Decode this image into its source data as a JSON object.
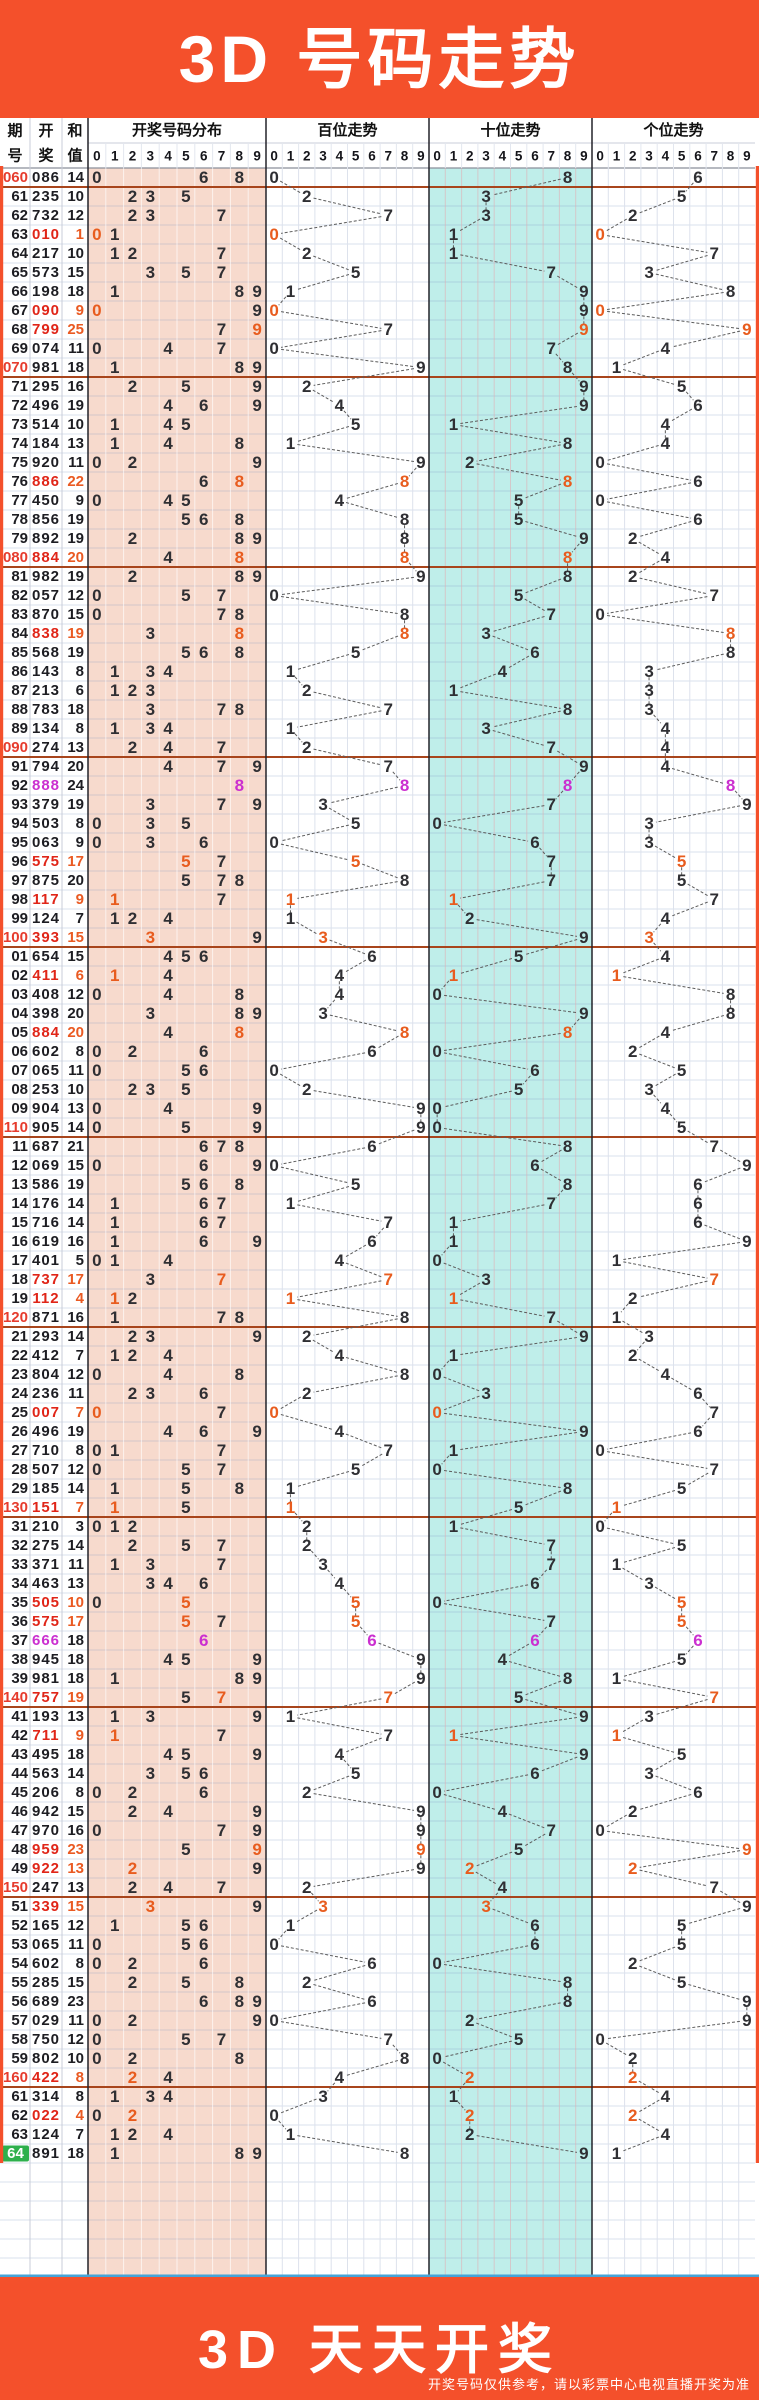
{
  "title": "3D 号码走势",
  "footer": {
    "title": "3D 天天开奖",
    "disclaimer": "开奖号码仅供参考，请以彩票中心电视直播开奖为准"
  },
  "table_header": {
    "period": [
      "期",
      "号"
    ],
    "draw": [
      "开",
      "奖"
    ],
    "sum": [
      "和",
      "值"
    ],
    "groups": [
      "开奖号码分布",
      "百位走势",
      "十位走势",
      "个位走势"
    ],
    "digits": [
      "0",
      "1",
      "2",
      "3",
      "4",
      "5",
      "6",
      "7",
      "8",
      "9"
    ]
  },
  "colors": {
    "banner": "#f4502b",
    "pink_bg": "#f7dacd",
    "cyan_bg": "#bfeeea",
    "ink": "#2f2f33",
    "ink2": "#1d1d22",
    "pair": "#e85c1e",
    "triple": "#cb2fd0",
    "period_red": "#e63c2e",
    "draw_red": "#e02518",
    "sum_red": "#ea5a22",
    "green": "#2eb04c",
    "separator": "#a8451c",
    "blue_line": "#46a4d8"
  },
  "chart_data": {
    "type": "table",
    "description": "China Welfare 3D lottery trend chart. Each row: period, winning 3-digit number, digit sum. Digits are plotted on 0-9 axes for number distribution, hundreds, tens and units positions; repeated-digit draws shown orange, triple-digit draws shown magenta.",
    "digit_axis": [
      "0",
      "1",
      "2",
      "3",
      "4",
      "5",
      "6",
      "7",
      "8",
      "9"
    ],
    "rows": [
      {
        "p": "060",
        "d": "086",
        "s": 14
      },
      {
        "p": "61",
        "d": "235",
        "s": 10
      },
      {
        "p": "62",
        "d": "732",
        "s": 12
      },
      {
        "p": "63",
        "d": "010",
        "s": 1
      },
      {
        "p": "64",
        "d": "217",
        "s": 10
      },
      {
        "p": "65",
        "d": "573",
        "s": 15
      },
      {
        "p": "66",
        "d": "198",
        "s": 18
      },
      {
        "p": "67",
        "d": "090",
        "s": 9
      },
      {
        "p": "68",
        "d": "799",
        "s": 25
      },
      {
        "p": "69",
        "d": "074",
        "s": 11
      },
      {
        "p": "070",
        "d": "981",
        "s": 18
      },
      {
        "p": "71",
        "d": "295",
        "s": 16
      },
      {
        "p": "72",
        "d": "496",
        "s": 19
      },
      {
        "p": "73",
        "d": "514",
        "s": 10
      },
      {
        "p": "74",
        "d": "184",
        "s": 13
      },
      {
        "p": "75",
        "d": "920",
        "s": 11
      },
      {
        "p": "76",
        "d": "886",
        "s": 22
      },
      {
        "p": "77",
        "d": "450",
        "s": 9
      },
      {
        "p": "78",
        "d": "856",
        "s": 19
      },
      {
        "p": "79",
        "d": "892",
        "s": 19
      },
      {
        "p": "080",
        "d": "884",
        "s": 20
      },
      {
        "p": "81",
        "d": "982",
        "s": 19
      },
      {
        "p": "82",
        "d": "057",
        "s": 12
      },
      {
        "p": "83",
        "d": "870",
        "s": 15
      },
      {
        "p": "84",
        "d": "838",
        "s": 19
      },
      {
        "p": "85",
        "d": "568",
        "s": 19
      },
      {
        "p": "86",
        "d": "143",
        "s": 8
      },
      {
        "p": "87",
        "d": "213",
        "s": 6
      },
      {
        "p": "88",
        "d": "783",
        "s": 18
      },
      {
        "p": "89",
        "d": "134",
        "s": 8
      },
      {
        "p": "090",
        "d": "274",
        "s": 13
      },
      {
        "p": "91",
        "d": "794",
        "s": 20
      },
      {
        "p": "92",
        "d": "888",
        "s": 24
      },
      {
        "p": "93",
        "d": "379",
        "s": 19
      },
      {
        "p": "94",
        "d": "503",
        "s": 8
      },
      {
        "p": "95",
        "d": "063",
        "s": 9
      },
      {
        "p": "96",
        "d": "575",
        "s": 17
      },
      {
        "p": "97",
        "d": "875",
        "s": 20
      },
      {
        "p": "98",
        "d": "117",
        "s": 9
      },
      {
        "p": "99",
        "d": "124",
        "s": 7
      },
      {
        "p": "100",
        "d": "393",
        "s": 15
      },
      {
        "p": "01",
        "d": "654",
        "s": 15
      },
      {
        "p": "02",
        "d": "411",
        "s": 6
      },
      {
        "p": "03",
        "d": "408",
        "s": 12
      },
      {
        "p": "04",
        "d": "398",
        "s": 20
      },
      {
        "p": "05",
        "d": "884",
        "s": 20
      },
      {
        "p": "06",
        "d": "602",
        "s": 8
      },
      {
        "p": "07",
        "d": "065",
        "s": 11
      },
      {
        "p": "08",
        "d": "253",
        "s": 10
      },
      {
        "p": "09",
        "d": "904",
        "s": 13
      },
      {
        "p": "110",
        "d": "905",
        "s": 14
      },
      {
        "p": "11",
        "d": "687",
        "s": 21
      },
      {
        "p": "12",
        "d": "069",
        "s": 15
      },
      {
        "p": "13",
        "d": "586",
        "s": 19
      },
      {
        "p": "14",
        "d": "176",
        "s": 14
      },
      {
        "p": "15",
        "d": "716",
        "s": 14
      },
      {
        "p": "16",
        "d": "619",
        "s": 16
      },
      {
        "p": "17",
        "d": "401",
        "s": 5
      },
      {
        "p": "18",
        "d": "737",
        "s": 17
      },
      {
        "p": "19",
        "d": "112",
        "s": 4
      },
      {
        "p": "120",
        "d": "871",
        "s": 16
      },
      {
        "p": "21",
        "d": "293",
        "s": 14
      },
      {
        "p": "22",
        "d": "412",
        "s": 7
      },
      {
        "p": "23",
        "d": "804",
        "s": 12
      },
      {
        "p": "24",
        "d": "236",
        "s": 11
      },
      {
        "p": "25",
        "d": "007",
        "s": 7
      },
      {
        "p": "26",
        "d": "496",
        "s": 19
      },
      {
        "p": "27",
        "d": "710",
        "s": 8
      },
      {
        "p": "28",
        "d": "507",
        "s": 12
      },
      {
        "p": "29",
        "d": "185",
        "s": 14
      },
      {
        "p": "130",
        "d": "151",
        "s": 7
      },
      {
        "p": "31",
        "d": "210",
        "s": 3
      },
      {
        "p": "32",
        "d": "275",
        "s": 14
      },
      {
        "p": "33",
        "d": "371",
        "s": 11
      },
      {
        "p": "34",
        "d": "463",
        "s": 13
      },
      {
        "p": "35",
        "d": "505",
        "s": 10
      },
      {
        "p": "36",
        "d": "575",
        "s": 17
      },
      {
        "p": "37",
        "d": "666",
        "s": 18
      },
      {
        "p": "38",
        "d": "945",
        "s": 18
      },
      {
        "p": "39",
        "d": "981",
        "s": 18
      },
      {
        "p": "140",
        "d": "757",
        "s": 19
      },
      {
        "p": "41",
        "d": "193",
        "s": 13
      },
      {
        "p": "42",
        "d": "711",
        "s": 9
      },
      {
        "p": "43",
        "d": "495",
        "s": 18
      },
      {
        "p": "44",
        "d": "563",
        "s": 14
      },
      {
        "p": "45",
        "d": "206",
        "s": 8
      },
      {
        "p": "46",
        "d": "942",
        "s": 15
      },
      {
        "p": "47",
        "d": "970",
        "s": 16
      },
      {
        "p": "48",
        "d": "959",
        "s": 23
      },
      {
        "p": "49",
        "d": "922",
        "s": 13
      },
      {
        "p": "150",
        "d": "247",
        "s": 13
      },
      {
        "p": "51",
        "d": "339",
        "s": 15
      },
      {
        "p": "52",
        "d": "165",
        "s": 12
      },
      {
        "p": "53",
        "d": "065",
        "s": 11
      },
      {
        "p": "54",
        "d": "602",
        "s": 8
      },
      {
        "p": "55",
        "d": "285",
        "s": 15
      },
      {
        "p": "56",
        "d": "689",
        "s": 23
      },
      {
        "p": "57",
        "d": "029",
        "s": 11
      },
      {
        "p": "58",
        "d": "750",
        "s": 12
      },
      {
        "p": "59",
        "d": "802",
        "s": 10
      },
      {
        "p": "160",
        "d": "422",
        "s": 8
      },
      {
        "p": "61",
        "d": "314",
        "s": 8
      },
      {
        "p": "62",
        "d": "022",
        "s": 4
      },
      {
        "p": "63",
        "d": "124",
        "s": 7
      },
      {
        "p": "64",
        "d": "891",
        "s": 18,
        "hl": true
      }
    ]
  }
}
